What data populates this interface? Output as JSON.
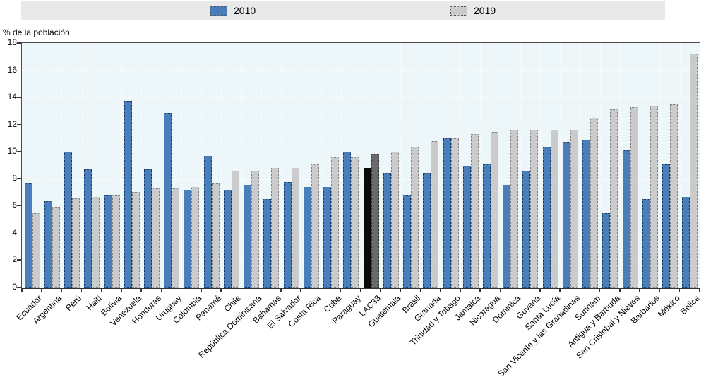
{
  "chart_data": {
    "type": "bar",
    "title": "",
    "ylabel": "% de la población",
    "xlabel": "",
    "ylim": [
      0,
      18
    ],
    "yticks": [
      0,
      2,
      4,
      6,
      8,
      10,
      12,
      14,
      16,
      18
    ],
    "grid": "white-dotted",
    "legend_position": "top",
    "plot_bg_color": "#edf7fa",
    "legend_bg_color": "#e9e9e9",
    "categories": [
      "Ecuador",
      "Argentina",
      "Perú",
      "Haití",
      "Bolivia",
      "Venezuela",
      "Honduras",
      "Uruguay",
      "Colombia",
      "Panamá",
      "Chile",
      "República Dominicana",
      "Bahamas",
      "El Salvador",
      "Costa Rica",
      "Cuba",
      "Paraguay",
      "LAC33",
      "Guatemala",
      "Brasil",
      "Granada",
      "Trinidad y Tobago",
      "Jamaica",
      "Nicaragua",
      "Dominica",
      "Guyana",
      "Santa Lucía",
      "San Vicente y las Granadinas",
      "Surinam",
      "Antigua y Barbuda",
      "San Cristóbal y Nieves",
      "Barbados",
      "México",
      "Belice"
    ],
    "series": [
      {
        "name": "2010",
        "color": "#4a7ebb",
        "border_color": "#17375e",
        "values": [
          7.7,
          6.4,
          10.0,
          8.7,
          6.8,
          13.7,
          8.7,
          12.8,
          7.2,
          9.7,
          7.2,
          7.6,
          6.5,
          7.8,
          7.4,
          7.4,
          10.0,
          8.8,
          8.4,
          6.8,
          8.4,
          11.0,
          9.0,
          9.1,
          7.6,
          8.6,
          10.4,
          10.7,
          10.9,
          5.5,
          10.1,
          6.5,
          9.1,
          6.7
        ]
      },
      {
        "name": "2019",
        "color": "#cbcbcb",
        "border_color": "#7f7f7f",
        "values": [
          5.5,
          5.9,
          6.6,
          6.7,
          6.8,
          7.0,
          7.3,
          7.3,
          7.4,
          7.7,
          8.6,
          8.6,
          8.8,
          8.8,
          9.1,
          9.6,
          9.6,
          9.8,
          10.0,
          10.4,
          10.8,
          11.0,
          11.3,
          11.4,
          11.6,
          11.6,
          11.6,
          11.6,
          12.5,
          13.1,
          13.3,
          13.4,
          13.5,
          17.2
        ]
      }
    ],
    "highlight": {
      "category": "LAC33",
      "colors": [
        "#0a0a0a",
        "#6a6a6a"
      ],
      "border_colors": [
        "#000000",
        "#2b2b2b"
      ]
    }
  }
}
